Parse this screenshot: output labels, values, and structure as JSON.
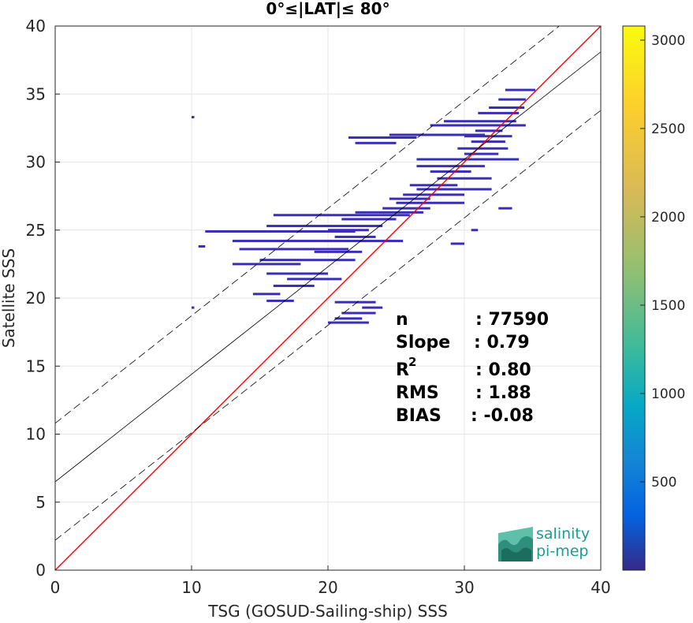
{
  "chart_data": {
    "type": "scatter",
    "title": "0°≤|LAT|≤ 80°",
    "xlabel": "TSG (GOSUD-Sailing-ship) SSS",
    "ylabel": "Satellite SSS",
    "xlim": [
      0,
      40
    ],
    "ylim": [
      0,
      40
    ],
    "xticks": [
      "0",
      "10",
      "20",
      "30",
      "40"
    ],
    "yticks": [
      "0",
      "5",
      "10",
      "15",
      "20",
      "25",
      "30",
      "35",
      "40"
    ],
    "grid": true,
    "lines": [
      {
        "name": "1:1",
        "color": "#ff0000",
        "intercept": 0,
        "slope": 1,
        "style": "solid"
      },
      {
        "name": "fit",
        "color": "#000000",
        "intercept": 6.5,
        "slope": 0.79,
        "style": "solid"
      },
      {
        "name": "fit+",
        "color": "#000000",
        "intercept": 10.8,
        "slope": 0.79,
        "style": "dashed"
      },
      {
        "name": "fit-",
        "color": "#000000",
        "intercept": 2.2,
        "slope": 0.79,
        "style": "dashed"
      }
    ],
    "density_segments": [
      [
        33.0,
        35.2,
        35.3
      ],
      [
        32.5,
        34.5,
        34.6
      ],
      [
        31.8,
        34.4,
        34.0
      ],
      [
        31.0,
        34.0,
        33.6
      ],
      [
        28.5,
        33.8,
        33.0
      ],
      [
        27.5,
        34.5,
        32.7
      ],
      [
        30.8,
        32.8,
        32.3
      ],
      [
        24.5,
        31.5,
        32.0
      ],
      [
        30.0,
        33.5,
        31.9
      ],
      [
        21.5,
        26.5,
        31.8
      ],
      [
        30.5,
        33.0,
        31.5
      ],
      [
        22.0,
        25.0,
        31.4
      ],
      [
        29.5,
        33.2,
        31.0
      ],
      [
        30.0,
        32.5,
        30.6
      ],
      [
        26.5,
        34.0,
        30.2
      ],
      [
        26.5,
        31.5,
        29.7
      ],
      [
        27.5,
        30.5,
        29.3
      ],
      [
        28.0,
        32.0,
        28.8
      ],
      [
        26.0,
        29.5,
        28.3
      ],
      [
        26.5,
        32.0,
        28.0
      ],
      [
        25.5,
        30.0,
        27.6
      ],
      [
        24.5,
        27.5,
        27.3
      ],
      [
        25.0,
        30.0,
        27.0
      ],
      [
        24.0,
        27.5,
        26.6
      ],
      [
        22.0,
        27.0,
        26.3
      ],
      [
        16.0,
        26.0,
        26.1
      ],
      [
        21.0,
        25.0,
        25.8
      ],
      [
        15.5,
        24.0,
        25.3
      ],
      [
        20.0,
        23.0,
        25.0
      ],
      [
        11.0,
        22.0,
        24.9
      ],
      [
        20.5,
        23.5,
        24.5
      ],
      [
        13.0,
        25.5,
        24.2
      ],
      [
        10.5,
        11.0,
        23.8
      ],
      [
        13.5,
        21.5,
        23.6
      ],
      [
        19.0,
        22.5,
        23.4
      ],
      [
        15.0,
        22.0,
        22.8
      ],
      [
        13.0,
        18.0,
        22.5
      ],
      [
        15.5,
        20.0,
        21.8
      ],
      [
        17.0,
        21.0,
        21.4
      ],
      [
        16.0,
        19.0,
        20.9
      ],
      [
        14.5,
        16.5,
        20.3
      ],
      [
        15.5,
        17.5,
        19.8
      ],
      [
        20.5,
        23.5,
        19.7
      ],
      [
        22.5,
        24.0,
        19.3
      ],
      [
        21.0,
        23.5,
        18.9
      ],
      [
        20.5,
        22.5,
        18.5
      ],
      [
        20.0,
        23.0,
        18.2
      ],
      [
        10.0,
        10.2,
        19.3
      ],
      [
        10.0,
        10.2,
        33.3
      ],
      [
        32.5,
        33.5,
        26.6
      ],
      [
        30.5,
        31.0,
        25.0
      ],
      [
        29.0,
        30.0,
        24.0
      ]
    ],
    "colorbar": {
      "ticks": [
        "500",
        "1000",
        "1500",
        "2000",
        "2500",
        "3000"
      ],
      "min": 0,
      "max": 3080
    },
    "annotations": {
      "n_label": "n",
      "n_value": ": 77590",
      "slope_label": "Slope",
      "slope_value": ": 0.79",
      "r2_label": "R",
      "r2_sup": "2",
      "r2_value": ": 0.80",
      "rms_label": "RMS",
      "rms_value": ": 1.88",
      "bias_label": "BIAS",
      "bias_value": ": -0.08"
    }
  },
  "logo": {
    "line1": "salinity",
    "line2": "pi-mep"
  },
  "colors": {
    "point": "#3a2db8",
    "one_to_one": "#ff0000",
    "fit": "#000000",
    "grid": "#e6e6e6"
  }
}
